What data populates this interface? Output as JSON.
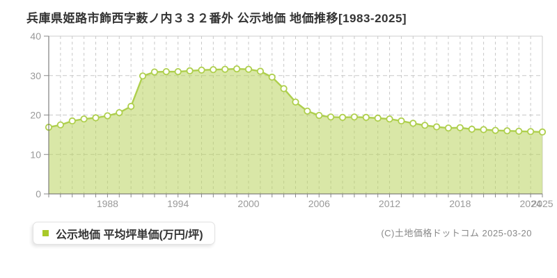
{
  "header": {
    "title": "兵庫県姫路市飾西字薮ノ内３３２番外 公示地価 地価推移[1983-2025]"
  },
  "legend": {
    "label": "公示地価 平均坪単価(万円/坪)",
    "marker_color": "#a9c929"
  },
  "footer": {
    "copyright": "(C)土地価格ドットコム 2025-03-20"
  },
  "chart_data": {
    "type": "area",
    "title": "兵庫県姫路市飾西字薮ノ内３３２番外 公示地価 地価推移[1983-2025]",
    "xlabel": "",
    "ylabel": "公示地価 平均坪単価(万円/坪)",
    "x": [
      1983,
      1984,
      1985,
      1986,
      1987,
      1988,
      1989,
      1990,
      1991,
      1992,
      1993,
      1994,
      1995,
      1996,
      1997,
      1998,
      1999,
      2000,
      2001,
      2002,
      2003,
      2004,
      2005,
      2006,
      2007,
      2008,
      2009,
      2010,
      2011,
      2012,
      2013,
      2014,
      2015,
      2016,
      2017,
      2018,
      2019,
      2020,
      2021,
      2022,
      2023,
      2024,
      2025
    ],
    "series": [
      {
        "name": "公示地価 平均坪単価(万円/坪)",
        "values": [
          16.9,
          17.5,
          18.5,
          19.0,
          19.3,
          19.8,
          20.6,
          22.2,
          29.9,
          30.9,
          31.0,
          31.0,
          31.2,
          31.4,
          31.5,
          31.6,
          31.7,
          31.6,
          31.1,
          29.6,
          26.7,
          23.3,
          21.0,
          19.9,
          19.5,
          19.4,
          19.5,
          19.4,
          19.2,
          19.0,
          18.5,
          17.9,
          17.4,
          17.0,
          16.7,
          16.8,
          16.4,
          16.3,
          16.1,
          16.0,
          15.9,
          15.8,
          15.7
        ]
      }
    ],
    "ylim": [
      0,
      40
    ],
    "yticks": [
      0,
      10,
      20,
      30,
      40
    ],
    "xtick_labels": [
      1988,
      1994,
      2000,
      2006,
      2012,
      2018,
      2024,
      2025
    ],
    "grid": true,
    "legend_position": "bottom-left",
    "colors": {
      "fill": "#b9d35e",
      "fill_opacity": 0.55,
      "line": "#aecf4d",
      "marker_fill": "#fffef8",
      "grid": "#c8c8c8",
      "axis": "#666666",
      "plot_border": "#cccccc",
      "tick_text": "#999999"
    }
  }
}
